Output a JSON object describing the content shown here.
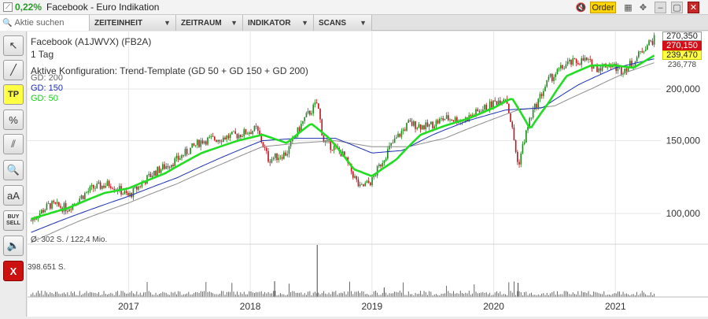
{
  "window": {
    "change": "0,22%",
    "title": "Facebook - Euro Indikation",
    "order_label": "Order"
  },
  "toolbar": {
    "search_placeholder": "Aktie suchen",
    "menus": [
      "ZEITEINHEIT",
      "ZEITRAUM",
      "INDIKATOR",
      "SCANS"
    ]
  },
  "sidebar": {
    "tp_label": "TP",
    "text_label": "aA",
    "buy_label": "BUY",
    "sell_label": "SELL",
    "close_label": "X"
  },
  "chart": {
    "name": "Facebook (A1JWVX) (FB2A)",
    "timeframe": "1 Tag",
    "config": "Aktive Konfiguration: Trend-Template (GD 50 + GD 150 + GD 200)",
    "gd200_label": "GD: 200",
    "gd150_label": "GD: 150",
    "gd50_label": "GD: 50",
    "volume_avg": "Ø: 302 S. / 122,4 Mio.",
    "volume_max": "398.651 S.",
    "price_high": "270,350",
    "price_last": "270,150",
    "price_gd50": "239,470",
    "price_gd150": "236,778",
    "colors": {
      "candle_up": "#1a8a1a",
      "candle_down": "#c0141c",
      "gd50": "#22dd22",
      "gd150": "#1a2fb0",
      "gd200": "#8c8c8c",
      "last_badge": "#d40f18",
      "gd50_badge": "#ffff44"
    }
  },
  "chart_data": {
    "type": "line",
    "y_ticks": [
      "200,000",
      "150,000",
      "100,000"
    ],
    "x_ticks": [
      "2017",
      "2018",
      "2019",
      "2020",
      "2021"
    ],
    "y_tick_values": [
      200,
      150,
      100
    ],
    "x_tick_years": [
      2017,
      2018,
      2019,
      2020,
      2021
    ],
    "x_range": [
      "2016-03",
      "2021-05"
    ],
    "price_series": {
      "name": "Facebook",
      "x": [
        2016.2,
        2016.35,
        2016.5,
        2016.7,
        2016.85,
        2017.0,
        2017.2,
        2017.4,
        2017.6,
        2017.75,
        2017.9,
        2018.05,
        2018.15,
        2018.3,
        2018.45,
        2018.55,
        2018.6,
        2018.75,
        2018.9,
        2019.0,
        2019.15,
        2019.3,
        2019.45,
        2019.6,
        2019.75,
        2019.9,
        2020.1,
        2020.2,
        2020.3,
        2020.45,
        2020.6,
        2020.75,
        2020.85,
        2020.95,
        2021.05,
        2021.15,
        2021.25,
        2021.33
      ],
      "values": [
        96,
        105,
        103,
        115,
        118,
        110,
        125,
        135,
        150,
        152,
        155,
        160,
        135,
        140,
        170,
        185,
        150,
        140,
        115,
        120,
        145,
        165,
        162,
        170,
        168,
        178,
        192,
        130,
        170,
        210,
        230,
        235,
        225,
        230,
        222,
        232,
        255,
        265
      ]
    },
    "gd50": {
      "name": "GD: 50",
      "x": [
        2016.2,
        2016.5,
        2016.8,
        2017.0,
        2017.3,
        2017.6,
        2017.9,
        2018.1,
        2018.3,
        2018.5,
        2018.65,
        2018.85,
        2019.0,
        2019.2,
        2019.4,
        2019.6,
        2019.8,
        2020.0,
        2020.15,
        2020.3,
        2020.45,
        2020.6,
        2020.8,
        2021.0,
        2021.15,
        2021.33
      ],
      "values": [
        97,
        103,
        112,
        115,
        125,
        140,
        150,
        155,
        148,
        165,
        152,
        128,
        123,
        135,
        155,
        163,
        170,
        180,
        190,
        160,
        185,
        215,
        228,
        228,
        225,
        242
      ]
    },
    "gd150": {
      "name": "GD: 150",
      "x": [
        2016.2,
        2016.6,
        2017.0,
        2017.4,
        2017.8,
        2018.1,
        2018.4,
        2018.7,
        2019.0,
        2019.25,
        2019.5,
        2019.8,
        2020.1,
        2020.4,
        2020.7,
        2021.0,
        2021.33
      ],
      "values": [
        90,
        100,
        110,
        122,
        138,
        150,
        152,
        152,
        140,
        142,
        155,
        168,
        178,
        180,
        205,
        225,
        237
      ]
    },
    "gd200": {
      "name": "GD: 200",
      "x": [
        2016.2,
        2016.6,
        2017.0,
        2017.4,
        2017.8,
        2018.1,
        2018.4,
        2018.7,
        2019.0,
        2019.3,
        2019.6,
        2019.9,
        2020.2,
        2020.5,
        2020.8,
        2021.1,
        2021.33
      ],
      "values": [
        85,
        96,
        106,
        118,
        133,
        145,
        148,
        150,
        145,
        145,
        152,
        165,
        178,
        182,
        200,
        220,
        232
      ]
    }
  }
}
